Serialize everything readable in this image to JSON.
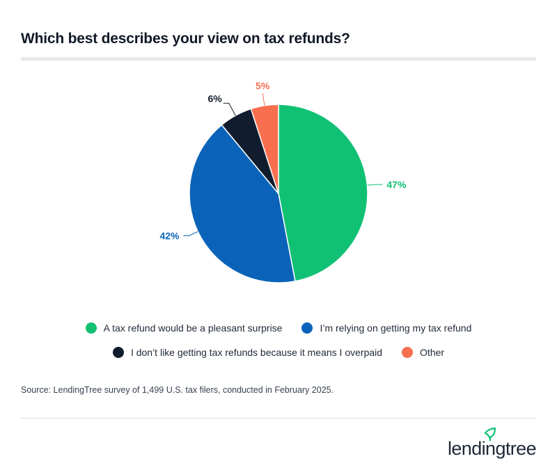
{
  "title": "Which best describes your view on tax refunds?",
  "source": "Source: LendingTree survey of 1,499 U.S. tax filers, conducted in February 2025.",
  "brand": {
    "name": "lendingtree"
  },
  "chart_data": {
    "type": "pie",
    "title": "Which best describes your view on tax refunds?",
    "slices": [
      {
        "label": "A tax refund would be a pleasant surprise",
        "value": 47,
        "display": "47%",
        "color": "#10c174"
      },
      {
        "label": "I’m relying on getting my tax refund",
        "value": 42,
        "display": "42%",
        "color": "#0a63b8"
      },
      {
        "label": "I don’t like getting tax refunds because it means I overpaid",
        "value": 6,
        "display": "6%",
        "color": "#111d2e"
      },
      {
        "label": "Other",
        "value": 5,
        "display": "5%",
        "color": "#f76f4f"
      }
    ],
    "legend_position": "bottom"
  }
}
